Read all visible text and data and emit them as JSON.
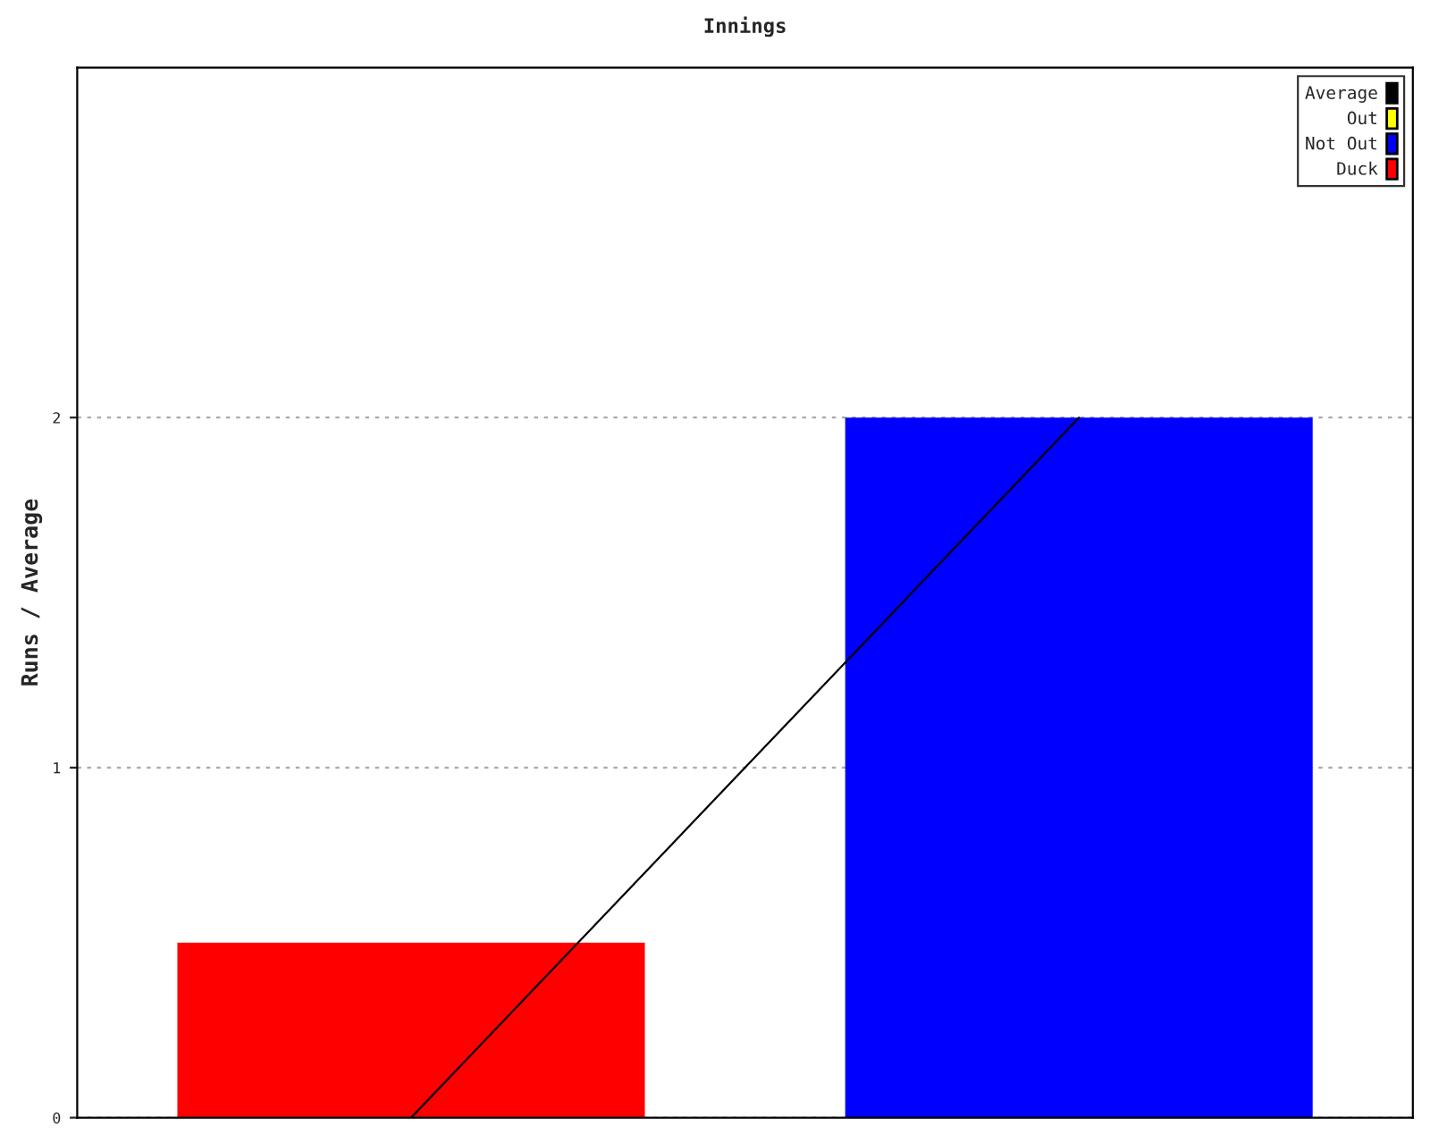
{
  "chart_data": {
    "type": "bar",
    "title": "Innings",
    "ylabel": "Runs / Average",
    "categories": [
      null,
      null
    ],
    "series": [
      {
        "name": "Average",
        "type": "line",
        "color": "#000000",
        "values": [
          0,
          2
        ]
      },
      {
        "name": "Out",
        "color": "#ffff00",
        "values": [
          null,
          null
        ]
      },
      {
        "name": "Not Out",
        "color": "#0000ff",
        "values": [
          null,
          2
        ]
      },
      {
        "name": "Duck",
        "color": "#ff0000",
        "values": [
          0.5,
          null
        ]
      }
    ],
    "ylim": [
      0,
      3
    ],
    "yticks": [
      0,
      1,
      2
    ],
    "grid": "y",
    "legend": "top right"
  }
}
